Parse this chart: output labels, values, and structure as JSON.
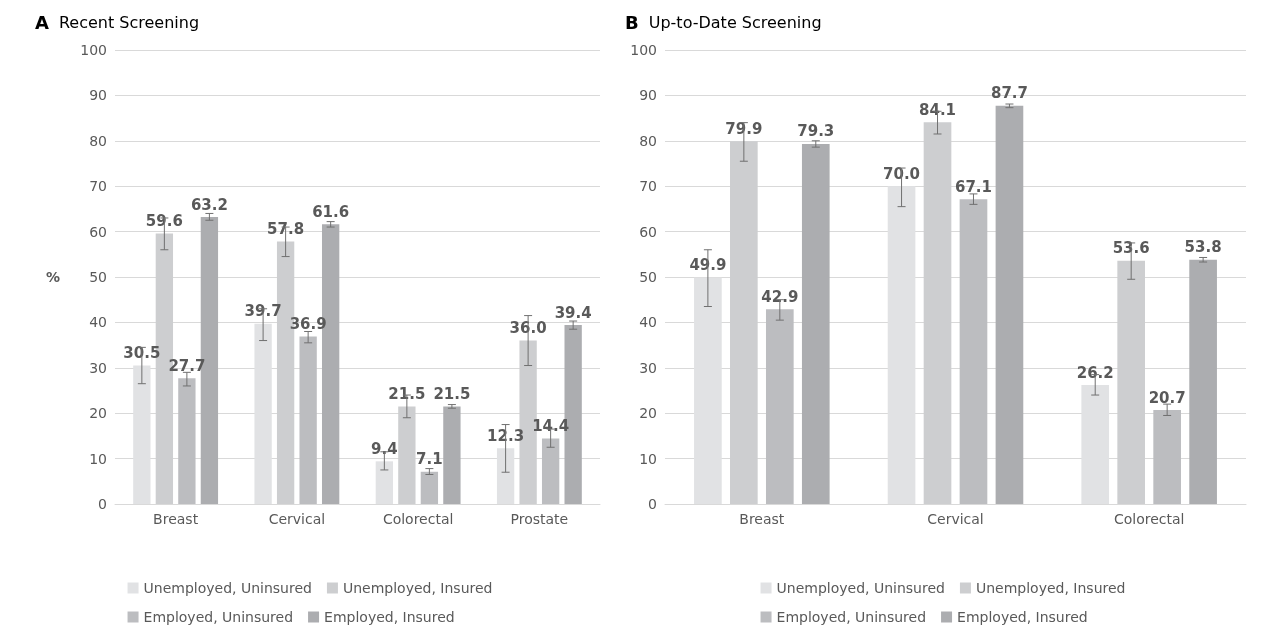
{
  "chart_data": [
    {
      "type": "bar",
      "title": "A Recent Screening",
      "ylabel": "%",
      "categories": [
        "Breast",
        "Cervical",
        "Colorectal",
        "Prostate"
      ],
      "ylim": [
        0,
        100
      ],
      "yticks": [
        0,
        10,
        20,
        30,
        40,
        50,
        60,
        70,
        80,
        90,
        100
      ],
      "grid": "y",
      "legend": "bottom",
      "series": [
        {
          "name": "Unemployed, Uninsured",
          "color": "#e1e2e4",
          "values": [
            30.5,
            39.7,
            9.4,
            12.3
          ],
          "value_labels": [
            "30.5",
            "39.7",
            "9.4",
            "12.3"
          ],
          "errors": [
            [
              26.5,
              34.5
            ],
            [
              36,
              43
            ],
            [
              7.5,
              11.5
            ],
            [
              7,
              17.5
            ]
          ]
        },
        {
          "name": "Unemployed, Insured",
          "color": "#cdced0",
          "values": [
            59.6,
            57.8,
            21.5,
            36.0
          ],
          "value_labels": [
            "59.6",
            "57.8",
            "21.5",
            "36.0"
          ],
          "errors": [
            [
              56,
              63
            ],
            [
              54.5,
              61
            ],
            [
              19,
              24
            ],
            [
              30.5,
              41.5
            ]
          ]
        },
        {
          "name": "Employed, Uninsured",
          "color": "#bcbdc0",
          "values": [
            27.7,
            36.9,
            7.1,
            14.4
          ],
          "value_labels": [
            "27.7",
            "36.9",
            "7.1",
            "14.4"
          ],
          "errors": [
            [
              26,
              29
            ],
            [
              35.5,
              38
            ],
            [
              6.5,
              7.8
            ],
            [
              12.5,
              16.5
            ]
          ]
        },
        {
          "name": "Employed, Insured",
          "color": "#acadb0",
          "values": [
            63.2,
            61.6,
            21.5,
            39.4
          ],
          "value_labels": [
            "63.2",
            "61.6",
            "21.5",
            "39.4"
          ],
          "errors": [
            [
              62.5,
              64
            ],
            [
              61,
              62.2
            ],
            [
              21.1,
              21.9
            ],
            [
              38.5,
              40.3
            ]
          ]
        }
      ]
    },
    {
      "type": "bar",
      "title": "B Up-to-Date Screening",
      "categories": [
        "Breast",
        "Cervical",
        "Colorectal"
      ],
      "ylim": [
        0,
        100
      ],
      "yticks": [
        0,
        10,
        20,
        30,
        40,
        50,
        60,
        70,
        80,
        90,
        100
      ],
      "grid": "y",
      "legend": "bottom",
      "series": [
        {
          "name": "Unemployed, Uninsured",
          "color": "#e1e2e4",
          "values": [
            49.9,
            70.0,
            26.2
          ],
          "value_labels": [
            "49.9",
            "70.0",
            "26.2"
          ],
          "errors": [
            [
              43.5,
              56
            ],
            [
              65.5,
              74
            ],
            [
              24,
              28.5
            ]
          ]
        },
        {
          "name": "Unemployed, Insured",
          "color": "#cdced0",
          "values": [
            79.9,
            84.1,
            53.6
          ],
          "value_labels": [
            "79.9",
            "84.1",
            "53.6"
          ],
          "errors": [
            [
              75.5,
              84
            ],
            [
              81.5,
              86.5
            ],
            [
              49.5,
              57.5
            ]
          ]
        },
        {
          "name": "Employed, Uninsured",
          "color": "#bcbdc0",
          "values": [
            42.9,
            67.1,
            20.7
          ],
          "value_labels": [
            "42.9",
            "67.1",
            "20.7"
          ],
          "errors": [
            [
              40.5,
              45
            ],
            [
              66,
              68.3
            ],
            [
              19.5,
              22
            ]
          ]
        },
        {
          "name": "Employed, Insured",
          "color": "#acadb0",
          "values": [
            79.3,
            87.7,
            53.8
          ],
          "value_labels": [
            "79.3",
            "87.7",
            "53.8"
          ],
          "errors": [
            [
              78.6,
              80
            ],
            [
              87.3,
              88.1
            ],
            [
              53.3,
              54.3
            ]
          ]
        }
      ]
    }
  ]
}
